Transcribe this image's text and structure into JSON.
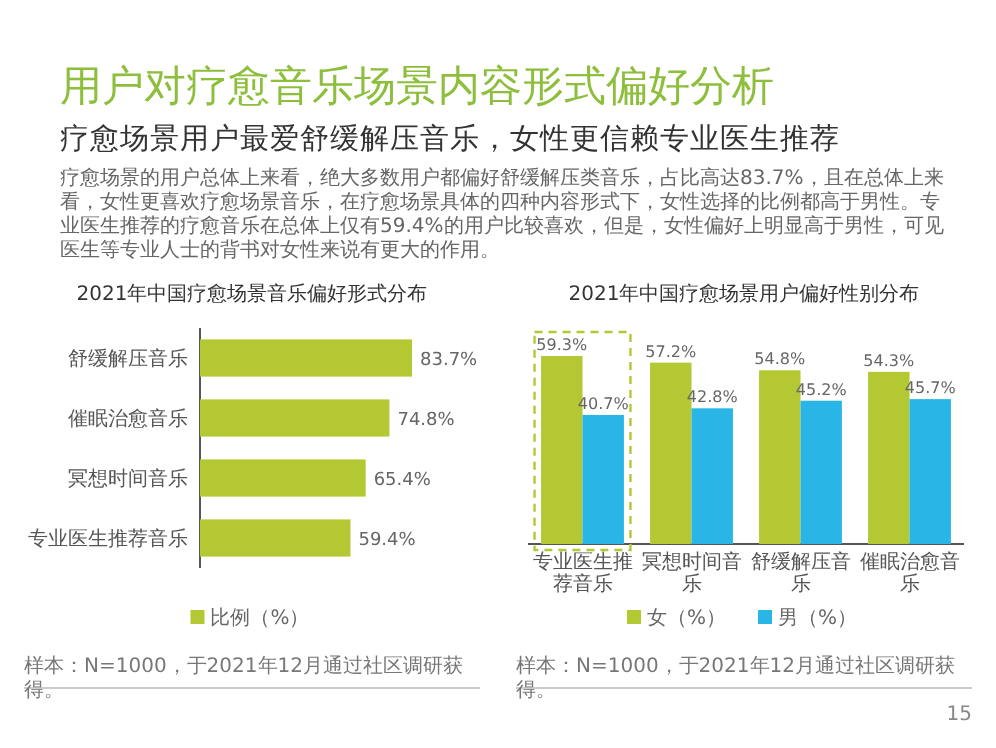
{
  "chart_data": [
    {
      "type": "other",
      "title": "用户对疗愈音乐场景内容形式偏好分析",
      "subtitle": "疗愈场景用户最爱舒缓解压音乐，女性更信赖专业医生推荐",
      "annotations": [
        "疗愈场景的用户总体上来看，绝大多数用户都偏好舒缓解压类音乐，占比高达83.7%，且在总体上来看，女性更喜欢疗愈场景音乐，在疗愈场景具体的四种内容形式下，女性选择的比例都高于男性。专业医生推荐的疗愈音乐在总体上仅有59.4%的用户比较喜欢，但是，女性偏好上明显高于男性，可见医生等专业人士的背书对女性来说有更大的作用。"
      ]
    },
    {
      "type": "bar",
      "orientation": "horizontal",
      "title": "2021年中国疗愈场景音乐偏好形式分布",
      "categories": [
        "舒缓解压音乐",
        "催眠治愈音乐",
        "冥想时间音乐",
        "专业医生推荐音乐"
      ],
      "series": [
        {
          "name": "比例（%）",
          "color": "#b3c833",
          "values": [
            83.7,
            74.8,
            65.4,
            59.4
          ],
          "value_labels": [
            "83.7%",
            "74.8%",
            "65.4%",
            "59.4%"
          ]
        }
      ],
      "legend": "bottom",
      "annotations": [
        "样本：N=1000，于2021年12月通过社区调研获得。"
      ]
    },
    {
      "type": "bar",
      "title": "2021年中国疗愈场景用户偏好性别分布",
      "categories": [
        "专业医生推荐音乐",
        "冥想时间音乐",
        "舒缓解压音乐",
        "催眠治愈音乐"
      ],
      "series": [
        {
          "name": "女（%）",
          "color": "#b3c833",
          "values": [
            59.3,
            57.2,
            54.8,
            54.3
          ],
          "value_labels": [
            "59.3%",
            "57.2%",
            "54.8%",
            "54.3%"
          ]
        },
        {
          "name": "男（%）",
          "color": "#29b6e6",
          "values": [
            40.7,
            42.8,
            45.2,
            45.7
          ],
          "value_labels": [
            "40.7%",
            "42.8%",
            "45.2%",
            "45.7%"
          ]
        }
      ],
      "legend": "bottom",
      "annotations": [
        "样本：N=1000，于2021年12月通过社区调研获得。",
        "15"
      ]
    }
  ]
}
